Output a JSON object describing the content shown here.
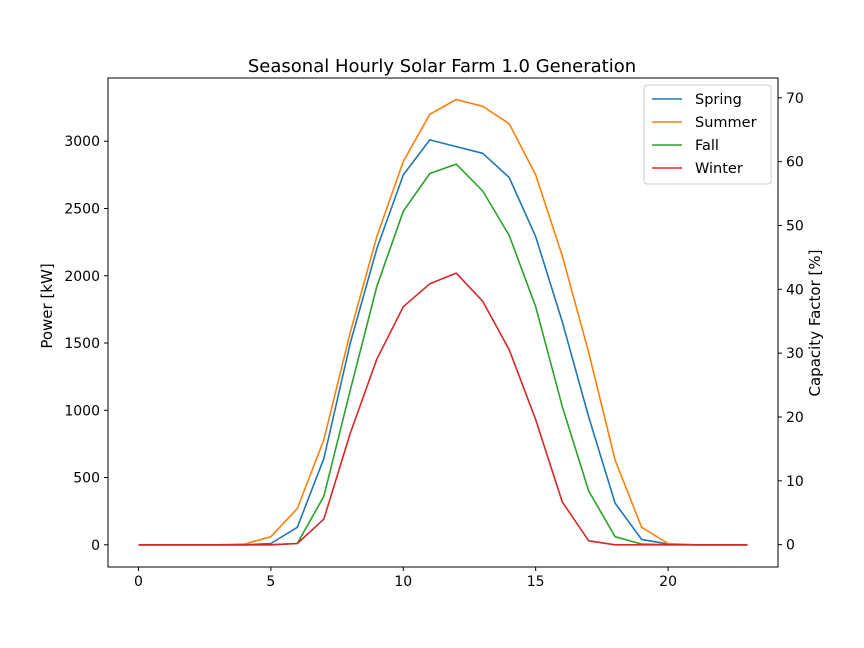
{
  "chart_data": {
    "type": "line",
    "title": "Seasonal Hourly Solar Farm 1.0 Generation",
    "xlabel": "",
    "ylabel": "Power [kW]",
    "ylabel_right": "Capacity Factor [%]",
    "xlim": [
      -1.15,
      24.15
    ],
    "ylim": [
      -165,
      3470
    ],
    "ylim_right": [
      -3.5,
      73.1
    ],
    "x_ticks": [
      0,
      5,
      10,
      15,
      20
    ],
    "y_ticks": [
      0,
      500,
      1000,
      1500,
      2000,
      2500,
      3000
    ],
    "y_ticks_right": [
      0,
      10,
      20,
      30,
      40,
      50,
      60,
      70
    ],
    "grid": false,
    "legend_position": "upper right",
    "x": [
      0,
      1,
      2,
      3,
      4,
      5,
      6,
      7,
      8,
      9,
      10,
      11,
      12,
      13,
      14,
      15,
      16,
      17,
      18,
      19,
      20,
      21,
      22,
      23
    ],
    "series": [
      {
        "name": "Spring",
        "color": "#1f77b4",
        "values": [
          0,
          0,
          0,
          0,
          0,
          10,
          130,
          640,
          1500,
          2200,
          2750,
          3010,
          2960,
          2910,
          2730,
          2290,
          1660,
          950,
          310,
          40,
          5,
          0,
          0,
          0
        ]
      },
      {
        "name": "Summer",
        "color": "#ff7f0e",
        "values": [
          0,
          0,
          0,
          0,
          5,
          60,
          270,
          780,
          1580,
          2290,
          2850,
          3200,
          3310,
          3260,
          3130,
          2750,
          2150,
          1430,
          630,
          130,
          10,
          0,
          0,
          0
        ]
      },
      {
        "name": "Fall",
        "color": "#2ca02c",
        "values": [
          0,
          0,
          0,
          0,
          0,
          0,
          10,
          360,
          1150,
          1920,
          2480,
          2760,
          2830,
          2630,
          2300,
          1770,
          1030,
          400,
          60,
          5,
          0,
          0,
          0,
          0
        ]
      },
      {
        "name": "Winter",
        "color": "#d62728",
        "values": [
          0,
          0,
          0,
          0,
          0,
          0,
          10,
          190,
          830,
          1380,
          1770,
          1940,
          2020,
          1810,
          1450,
          930,
          320,
          30,
          0,
          0,
          0,
          0,
          0,
          0
        ]
      }
    ]
  }
}
